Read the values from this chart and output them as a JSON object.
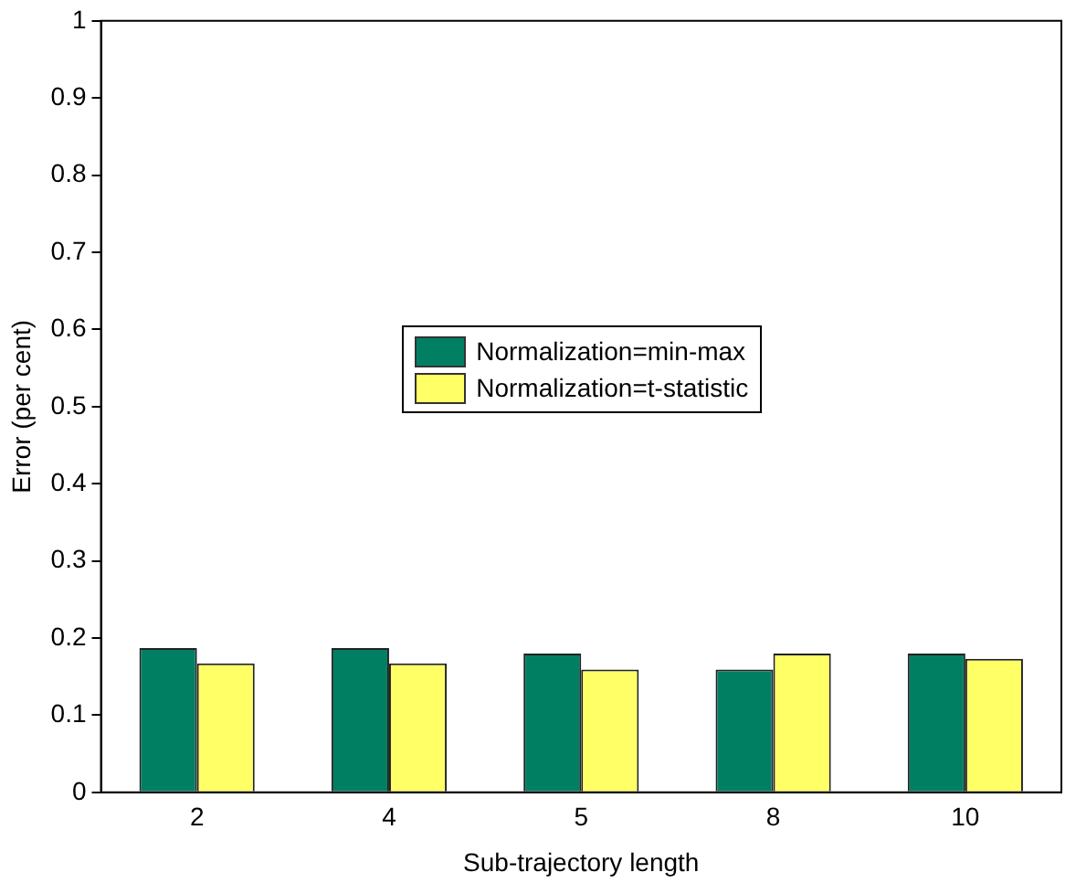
{
  "chart_data": {
    "type": "bar",
    "xlabel": "Sub-trajectory length",
    "ylabel": "Error (per cent)",
    "categories": [
      "2",
      "4",
      "5",
      "8",
      "10"
    ],
    "series": [
      {
        "name": "Normalization=min-max",
        "color": "#007f63",
        "values": [
          0.187,
          0.187,
          0.18,
          0.159,
          0.18
        ]
      },
      {
        "name": "Normalization=t-statistic",
        "color": "#ffff66",
        "values": [
          0.167,
          0.167,
          0.159,
          0.18,
          0.173
        ]
      }
    ],
    "ylim": [
      0,
      1
    ],
    "yticks": [
      0,
      0.1,
      0.2,
      0.3,
      0.4,
      0.5,
      0.6,
      0.7,
      0.8,
      0.9,
      1
    ],
    "grid": false,
    "legend": "center"
  }
}
